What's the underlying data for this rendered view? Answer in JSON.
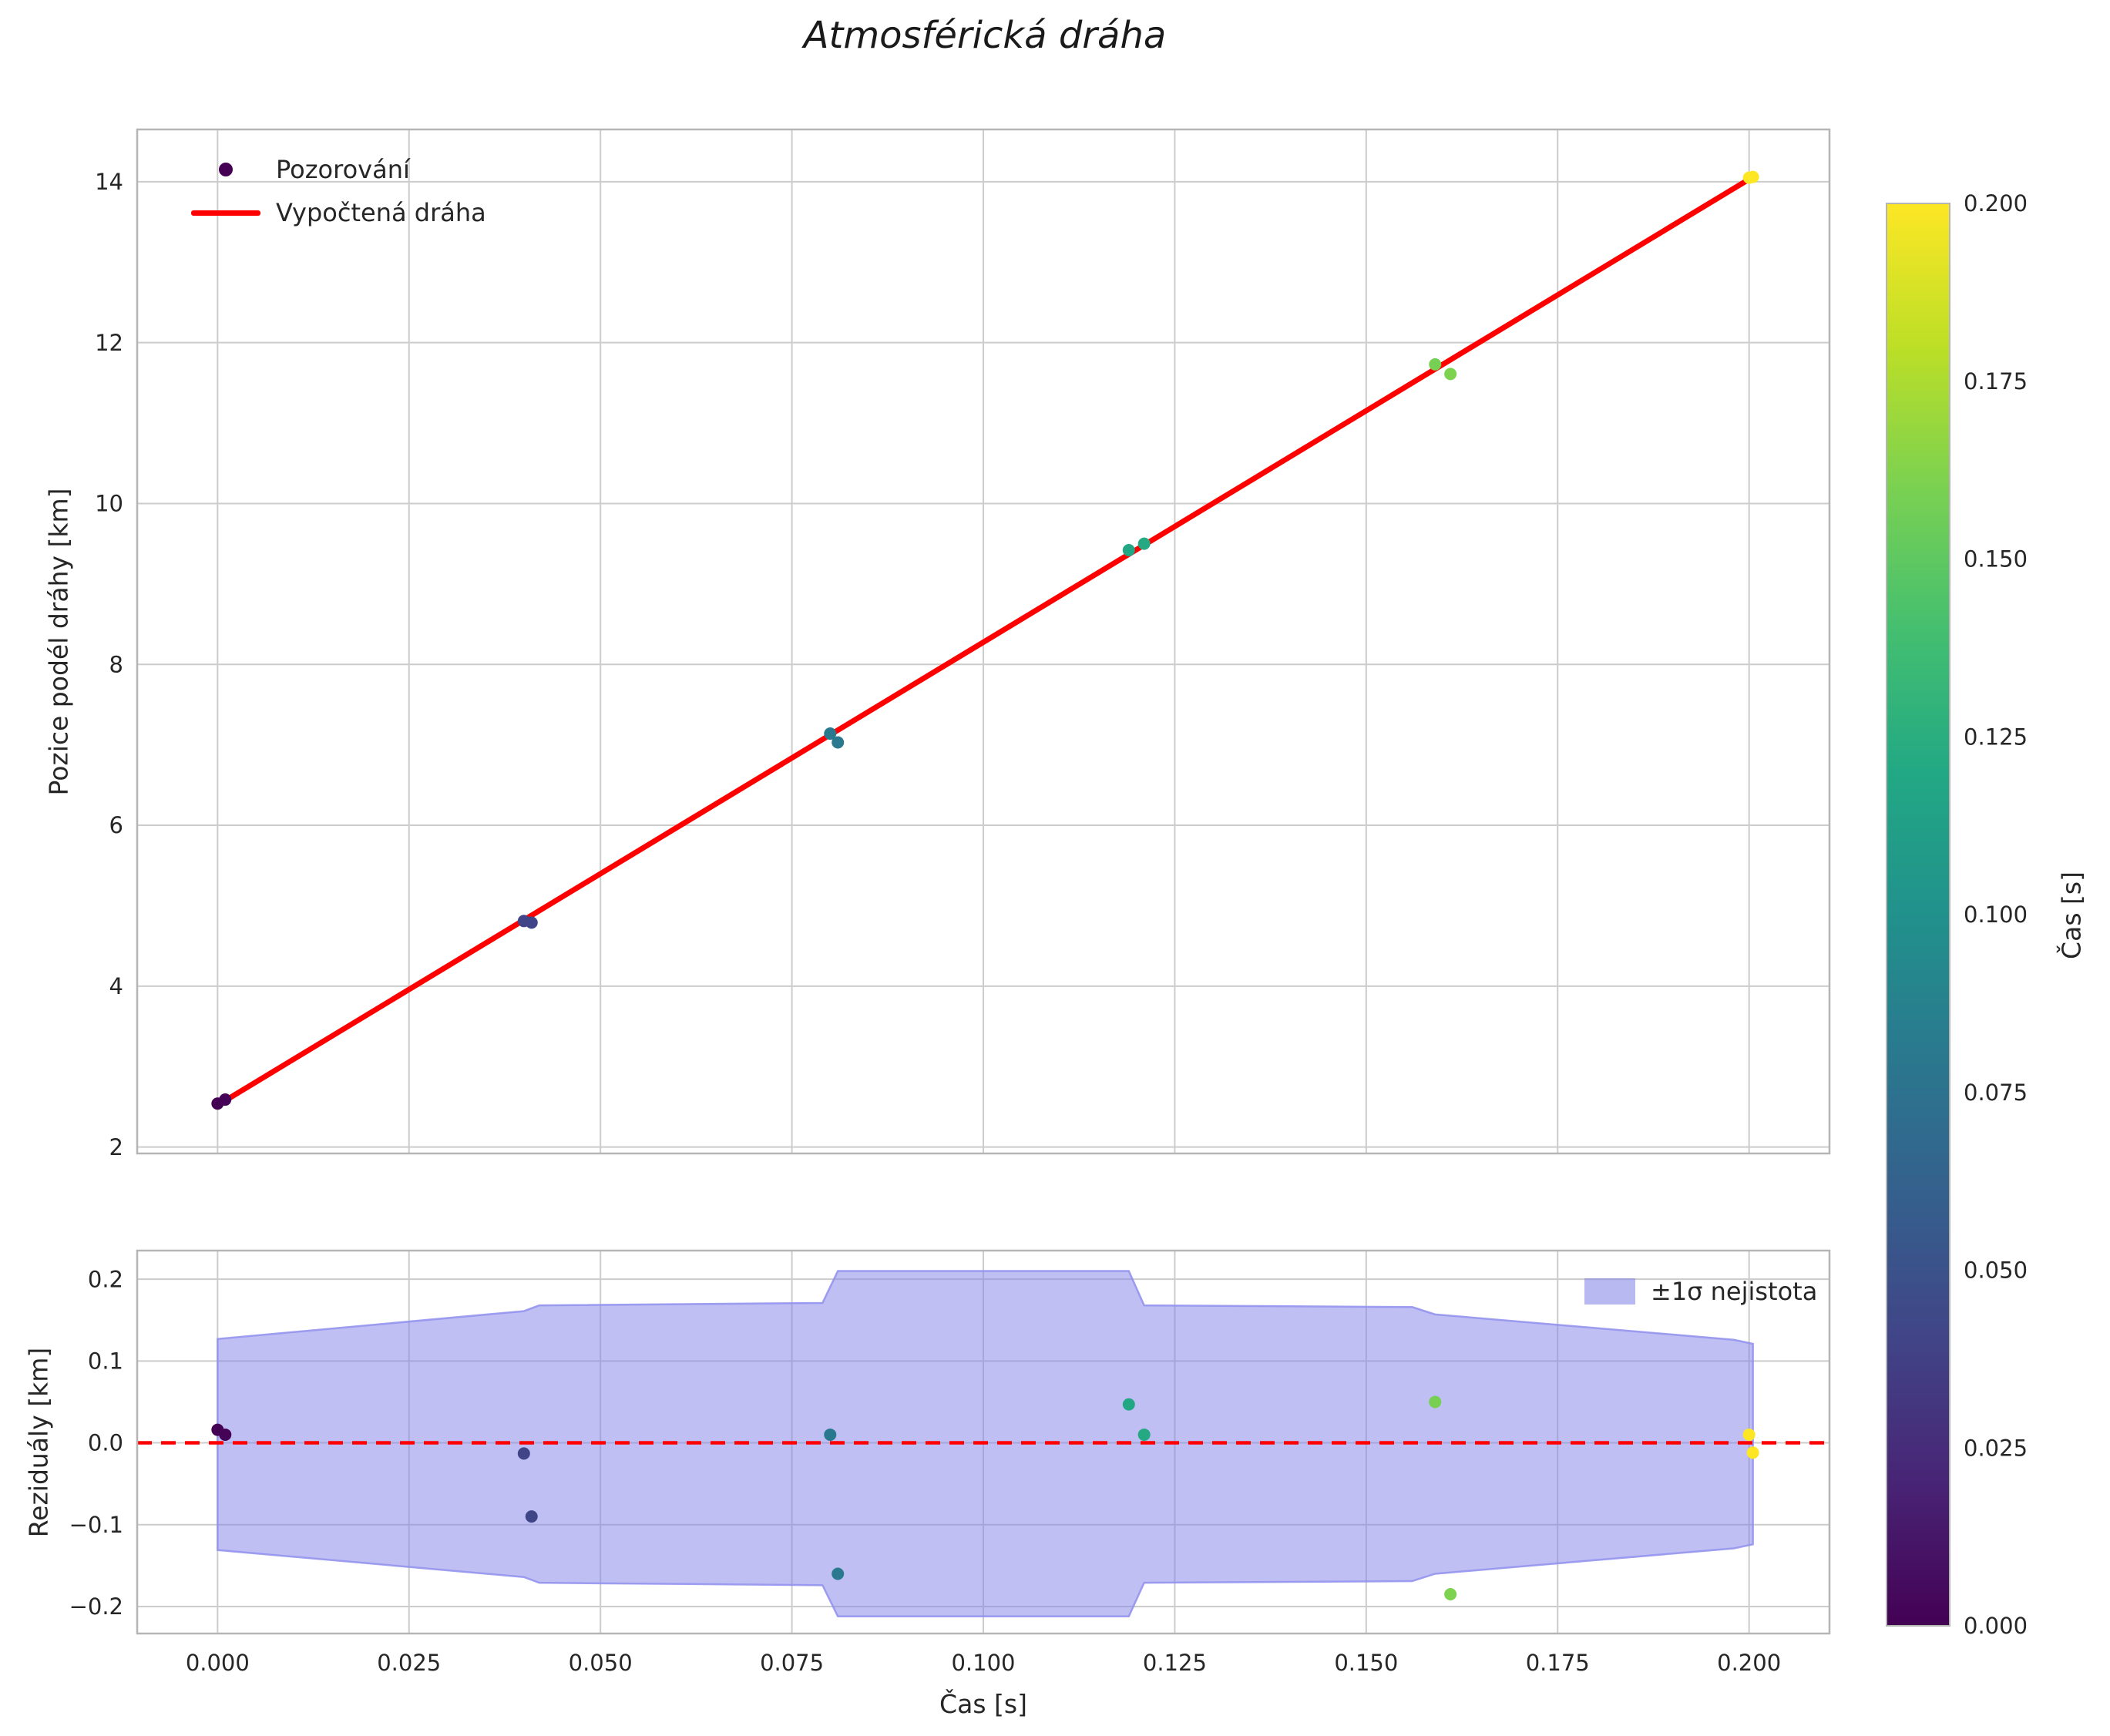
{
  "title": "Atmosférická dráha",
  "colors": {
    "fit_line": "#ff0000",
    "zero_line": "#ff0000",
    "band_fill": "#7f7fe8",
    "band_edge": "#8f8fee",
    "grid": "#cccccc",
    "frame": "#b5b5b5",
    "text": "#262626",
    "legend_marker": "#440154"
  },
  "chart_data": [
    {
      "id": "trajectory",
      "type": "scatter",
      "ylabel": "Pozice podél dráhy [km]",
      "xlim": [
        -0.0105,
        0.2105
      ],
      "ylim": [
        1.92,
        14.65
      ],
      "grid": true,
      "legend_position": "upper left",
      "yticks": {
        "values": [
          2,
          4,
          6,
          8,
          10,
          12,
          14
        ],
        "labels": [
          "2",
          "4",
          "6",
          "8",
          "10",
          "12",
          "14"
        ]
      },
      "xticks": {
        "values": [
          0,
          0.025,
          0.05,
          0.075,
          0.1,
          0.125,
          0.15,
          0.175,
          0.2
        ],
        "labels": []
      },
      "series": [
        {
          "name": "Pozorování",
          "type": "scatter",
          "colormap": "viridis",
          "color_value": "x",
          "points": [
            [
              0.0,
              2.54
            ],
            [
              0.001,
              2.59
            ],
            [
              0.04,
              4.81
            ],
            [
              0.041,
              4.79
            ],
            [
              0.08,
              7.14
            ],
            [
              0.081,
              7.03
            ],
            [
              0.119,
              9.42
            ],
            [
              0.121,
              9.5
            ],
            [
              0.159,
              11.73
            ],
            [
              0.161,
              11.61
            ],
            [
              0.2,
              14.05
            ],
            [
              0.2005,
              14.06
            ]
          ]
        },
        {
          "name": "Vypočtená dráha",
          "type": "line",
          "color": "#ff0000",
          "points": [
            [
              0.0,
              2.52
            ],
            [
              0.2005,
              14.06
            ]
          ]
        }
      ]
    },
    {
      "id": "residuals",
      "type": "scatter",
      "xlabel": "Čas [s]",
      "ylabel": "Reziduály [km]",
      "xlim": [
        -0.0105,
        0.2105
      ],
      "ylim": [
        -0.233,
        0.235
      ],
      "grid": true,
      "legend_position": "upper right",
      "yticks": {
        "values": [
          -0.2,
          -0.1,
          0,
          0.1,
          0.2
        ],
        "labels": [
          "−0.2",
          "−0.1",
          "0.0",
          "0.1",
          "0.2"
        ]
      },
      "xticks": {
        "values": [
          0,
          0.025,
          0.05,
          0.075,
          0.1,
          0.125,
          0.15,
          0.175,
          0.2
        ],
        "labels": [
          "0.000",
          "0.025",
          "0.050",
          "0.075",
          "0.100",
          "0.125",
          "0.150",
          "0.175",
          "0.200"
        ]
      },
      "band": {
        "label": "±1σ nejistota",
        "x": [
          0.0,
          0.04,
          0.042,
          0.079,
          0.081,
          0.119,
          0.121,
          0.156,
          0.159,
          0.198,
          0.2005
        ],
        "upper": [
          0.127,
          0.161,
          0.168,
          0.171,
          0.21,
          0.21,
          0.168,
          0.166,
          0.157,
          0.126,
          0.121
        ],
        "lower": [
          -0.131,
          -0.164,
          -0.171,
          -0.174,
          -0.212,
          -0.212,
          -0.171,
          -0.169,
          -0.16,
          -0.129,
          -0.124
        ]
      },
      "zero_line": {
        "y": 0.0,
        "color": "#ff0000",
        "dashed": true
      },
      "series": [
        {
          "type": "scatter",
          "colormap": "viridis",
          "color_value": "x",
          "points": [
            [
              0.0,
              0.016
            ],
            [
              0.001,
              0.01
            ],
            [
              0.04,
              -0.013
            ],
            [
              0.041,
              -0.09
            ],
            [
              0.08,
              0.01
            ],
            [
              0.081,
              -0.16
            ],
            [
              0.119,
              0.047
            ],
            [
              0.121,
              0.01
            ],
            [
              0.159,
              0.05
            ],
            [
              0.161,
              -0.185
            ],
            [
              0.2,
              0.01
            ],
            [
              0.2005,
              -0.012
            ]
          ]
        }
      ]
    }
  ],
  "colorbar": {
    "label": "Čas [s]",
    "min": 0.0,
    "max": 0.2,
    "colormap": "viridis",
    "ticks": {
      "values": [
        0,
        0.025,
        0.05,
        0.075,
        0.1,
        0.125,
        0.15,
        0.175,
        0.2
      ],
      "labels": [
        "0.000",
        "0.025",
        "0.050",
        "0.075",
        "0.100",
        "0.125",
        "0.150",
        "0.175",
        "0.200"
      ]
    },
    "stops": [
      "#440154",
      "#482475",
      "#414487",
      "#355f8d",
      "#2a788e",
      "#21918c",
      "#22a884",
      "#44bf70",
      "#7ad151",
      "#bddf26",
      "#fde725"
    ]
  }
}
